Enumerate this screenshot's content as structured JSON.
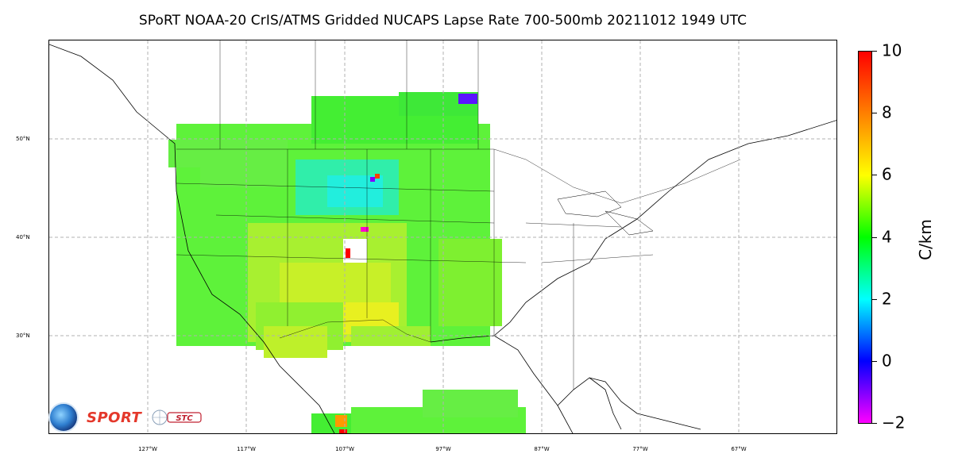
{
  "title": "SPoRT NOAA-20 CrIS/ATMS Gridded NUCAPS Lapse Rate 700-500mb 20211012 1949 UTC",
  "map": {
    "lat_labels": [
      "50°N",
      "40°N",
      "30°N"
    ],
    "lon_labels": [
      "127°W",
      "117°W",
      "107°W",
      "97°W",
      "87°W",
      "77°W",
      "67°W"
    ],
    "lat_label_values": [
      50,
      40,
      30
    ],
    "lon_label_values": [
      -127,
      -117,
      -107,
      -97,
      -87,
      -77,
      -67
    ],
    "extent": {
      "lon_min": -137,
      "lon_max": -57,
      "lat_min": 20,
      "lat_max": 60
    },
    "gridlines": true,
    "data_region_summary": "western and central United States, southern Canadian prairies, Gulf of Mexico south edge"
  },
  "colorbar": {
    "unit": "C/km",
    "tick_labels": [
      "10",
      "8",
      "6",
      "4",
      "2",
      "0",
      "−2"
    ],
    "tick_values": [
      10,
      8,
      6,
      4,
      2,
      0,
      -2
    ],
    "range": [
      -2,
      10
    ],
    "colors": [
      "#ff00ff",
      "#7f00ff",
      "#0000ff",
      "#0080ff",
      "#00ffff",
      "#00ff80",
      "#00ff00",
      "#80ff00",
      "#ffff00",
      "#ff8000",
      "#ff0000"
    ]
  },
  "logos": {
    "sport_text": "SPORT",
    "stc_text": "STC"
  }
}
